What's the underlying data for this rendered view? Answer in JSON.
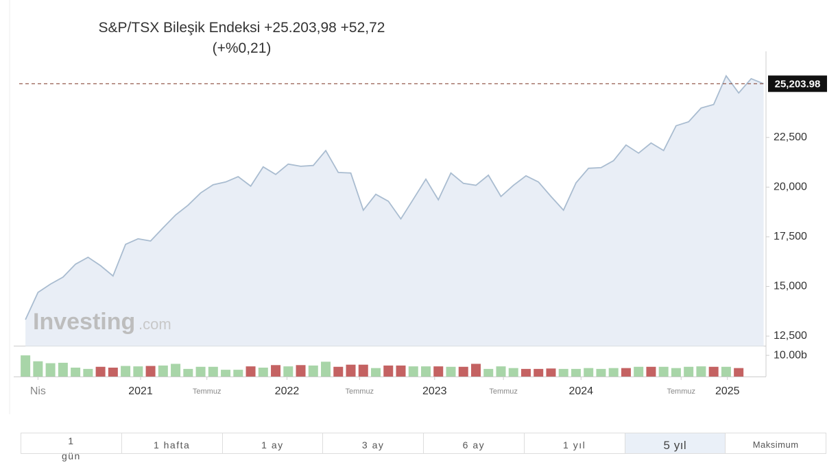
{
  "chart_data": {
    "type": "area",
    "title": {
      "name": "S&P/TSX Bileşik Endeksi",
      "price": "+25.203,98",
      "change": "+52,72",
      "percent": "(+%0,21)"
    },
    "watermark": [
      "Investing",
      ".com"
    ],
    "series": [
      {
        "color": "#a9bcd0",
        "fill": "#e9eef6",
        "values": [
          13330,
          14700,
          15120,
          15470,
          16120,
          16470,
          16050,
          15530,
          17120,
          17400,
          17290,
          17950,
          18600,
          19090,
          19710,
          20120,
          20260,
          20530,
          20050,
          21020,
          20640,
          21160,
          21050,
          21090,
          21840,
          20740,
          20710,
          18840,
          19640,
          19290,
          18400,
          19400,
          20400,
          19360,
          20710,
          20190,
          20090,
          20600,
          19530,
          20090,
          20570,
          20260,
          19530,
          18840,
          20220,
          20950,
          20980,
          21330,
          22120,
          21710,
          22220,
          21840,
          23090,
          23290,
          23980,
          24160,
          25600,
          24740,
          25460,
          25203.98
        ]
      }
    ],
    "last_price": {
      "value": 25203.98,
      "label": "25,203.98"
    },
    "xlim": [
      -0.5,
      58.8
    ],
    "xticks": [
      {
        "value": 1,
        "label": "Nis"
      },
      {
        "value": 9.2,
        "label": "2021"
      },
      {
        "value": 14.5,
        "label": "Temmuz"
      },
      {
        "value": 20.9,
        "label": "2022"
      },
      {
        "value": 26.7,
        "label": "Temmuz"
      },
      {
        "value": 32.7,
        "label": "2023"
      },
      {
        "value": 38.2,
        "label": "Temmuz"
      },
      {
        "value": 44.4,
        "label": "2024"
      },
      {
        "value": 52.4,
        "label": "Temmuz"
      },
      {
        "value": 56.1,
        "label": "2025"
      }
    ],
    "ylim": [
      12000,
      26800
    ],
    "yticks": [
      {
        "value": 12500,
        "label": "12,500"
      },
      {
        "value": 15000,
        "label": "15,000"
      },
      {
        "value": 17500,
        "label": "17,500"
      },
      {
        "value": 20000,
        "label": "20,000"
      },
      {
        "value": 22500,
        "label": "22,500"
      }
    ],
    "volume": {
      "ylim": [
        0,
        11
      ],
      "yticks": [
        {
          "value": 10,
          "label": "10.00b"
        }
      ],
      "values": [
        10,
        7.2,
        6.3,
        6.5,
        4.2,
        3.6,
        4.6,
        4.2,
        5.0,
        4.8,
        5.0,
        5.2,
        6.0,
        3.6,
        4.6,
        4.6,
        3.2,
        3.2,
        4.8,
        4.2,
        5.4,
        4.8,
        5.4,
        5.2,
        7.0,
        4.6,
        5.6,
        5.6,
        4.0,
        5.2,
        5.2,
        4.8,
        4.8,
        4.8,
        4.6,
        4.6,
        6.0,
        3.6,
        4.8,
        4.0,
        3.6,
        3.6,
        3.8,
        3.6,
        3.6,
        4.0,
        3.6,
        4.0,
        4.0,
        4.6,
        4.6,
        4.6,
        4.0,
        4.6,
        4.8,
        4.6,
        4.6,
        4.0
      ],
      "colors": [
        "#a8d5a8",
        "#a8d5a8",
        "#a8d5a8",
        "#a8d5a8",
        "#a8d5a8",
        "#a8d5a8",
        "#c46262",
        "#c46262",
        "#a8d5a8",
        "#a8d5a8",
        "#c46262",
        "#a8d5a8",
        "#a8d5a8",
        "#a8d5a8",
        "#a8d5a8",
        "#a8d5a8",
        "#a8d5a8",
        "#a8d5a8",
        "#c46262",
        "#a8d5a8",
        "#c46262",
        "#a8d5a8",
        "#c46262",
        "#a8d5a8",
        "#a8d5a8",
        "#c46262",
        "#c46262",
        "#c46262",
        "#a8d5a8",
        "#c46262",
        "#c46262",
        "#a8d5a8",
        "#a8d5a8",
        "#c46262",
        "#a8d5a8",
        "#c46262",
        "#c46262",
        "#a8d5a8",
        "#a8d5a8",
        "#a8d5a8",
        "#c46262",
        "#c46262",
        "#c46262",
        "#a8d5a8",
        "#a8d5a8",
        "#a8d5a8",
        "#a8d5a8",
        "#a8d5a8",
        "#c46262",
        "#a8d5a8",
        "#c46262",
        "#a8d5a8",
        "#a8d5a8",
        "#a8d5a8",
        "#a8d5a8",
        "#c46262",
        "#a8d5a8",
        "#c46262"
      ]
    },
    "ranges": [
      "1 gün",
      "1 hafta",
      "1 ay",
      "3 ay",
      "6 ay",
      "1 yıl",
      "5 yıl",
      "Maksimum"
    ],
    "selected_range": 6
  }
}
